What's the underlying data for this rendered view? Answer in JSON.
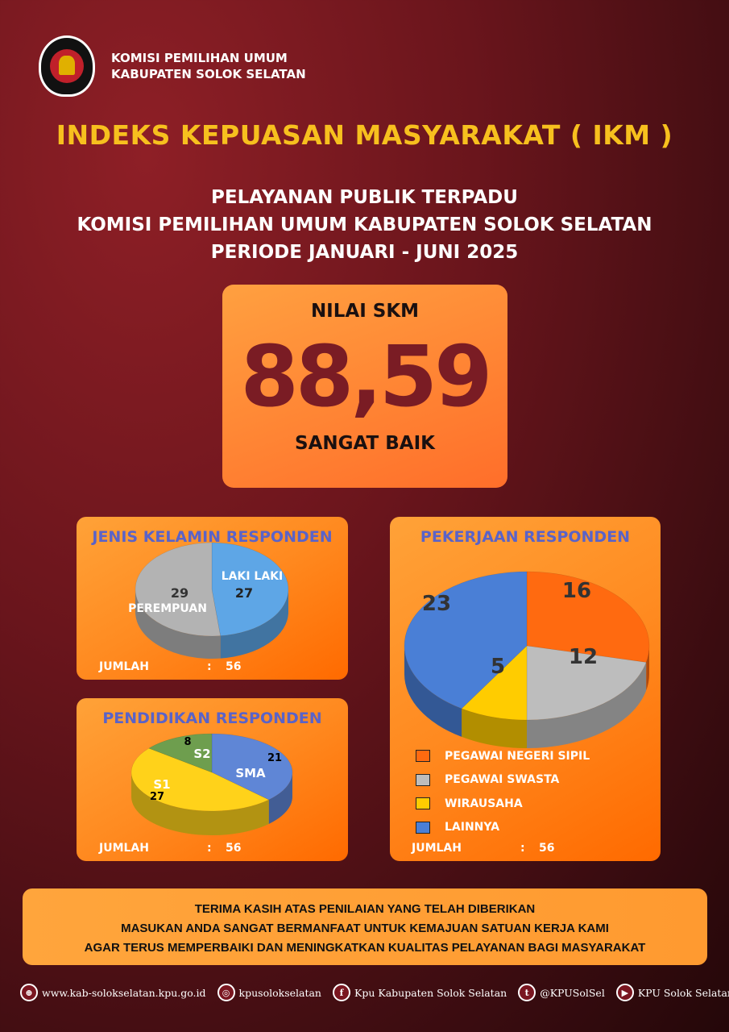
{
  "header": {
    "org_line1": "KOMISI PEMILIHAN UMUM",
    "org_line2": "KABUPATEN SOLOK SELATAN",
    "logo_text": "KOMISI PEMILIHAN UMUM"
  },
  "title": "INDEKS KEPUASAN MASYARAKAT ( IKM )",
  "subtitle": [
    "PELAYANAN PUBLIK TERPADU",
    "KOMISI PEMILIHAN UMUM KABUPATEN SOLOK SELATAN",
    "PERIODE JANUARI - JUNI 2025"
  ],
  "skm": {
    "label": "NILAI SKM",
    "value": "88,59",
    "rating": "SANGAT BAIK"
  },
  "chart_data": [
    {
      "type": "pie",
      "title": "JENIS KELAMIN RESPONDEN",
      "categories": [
        "LAKI LAKI",
        "PEREMPUAN"
      ],
      "values": [
        27,
        29
      ],
      "colors": [
        "#5ea6e6",
        "#b3b3b3"
      ],
      "total_label": "JUMLAH",
      "total": "56"
    },
    {
      "type": "pie",
      "title": "PENDIDIKAN RESPONDEN",
      "categories": [
        "SMA",
        "S1",
        "S2"
      ],
      "values": [
        21,
        27,
        8
      ],
      "colors": [
        "#5f86d6",
        "#ffd21a",
        "#6e9e4e"
      ],
      "total_label": "JUMLAH",
      "total": "56"
    },
    {
      "type": "pie",
      "title": "PEKERJAAN RESPONDEN",
      "categories": [
        "PEGAWAI NEGERI SIPIL",
        "PEGAWAI SWASTA",
        "WIRAUSAHA",
        "LAINNYA"
      ],
      "values": [
        16,
        12,
        5,
        23
      ],
      "colors": [
        "#ff6a10",
        "#bdbdbd",
        "#ffcc00",
        "#4a7fd6"
      ],
      "legend": "bottom",
      "total_label": "JUMLAH",
      "total": "56"
    }
  ],
  "banner": [
    "TERIMA KASIH ATAS PENILAIAN YANG TELAH DIBERIKAN",
    "MASUKAN ANDA SANGAT BERMANFAAT UNTUK KEMAJUAN SATUAN KERJA KAMI",
    "AGAR TERUS MEMPERBAIKI DAN MENINGKATKAN KUALITAS PELAYANAN BAGI  MASYARAKAT"
  ],
  "social": [
    {
      "icon": "globe-icon",
      "glyph": "⊕",
      "text": "www.kab-solokselatan.kpu.go.id"
    },
    {
      "icon": "instagram-icon",
      "glyph": "◎",
      "text": "kpusolokselatan"
    },
    {
      "icon": "facebook-icon",
      "glyph": "f",
      "text": "Kpu Kabupaten Solok Selatan"
    },
    {
      "icon": "twitter-icon",
      "glyph": "t",
      "text": "@KPUSolSel"
    },
    {
      "icon": "youtube-icon",
      "glyph": "▶",
      "text": "KPU Solok Selatan"
    }
  ]
}
